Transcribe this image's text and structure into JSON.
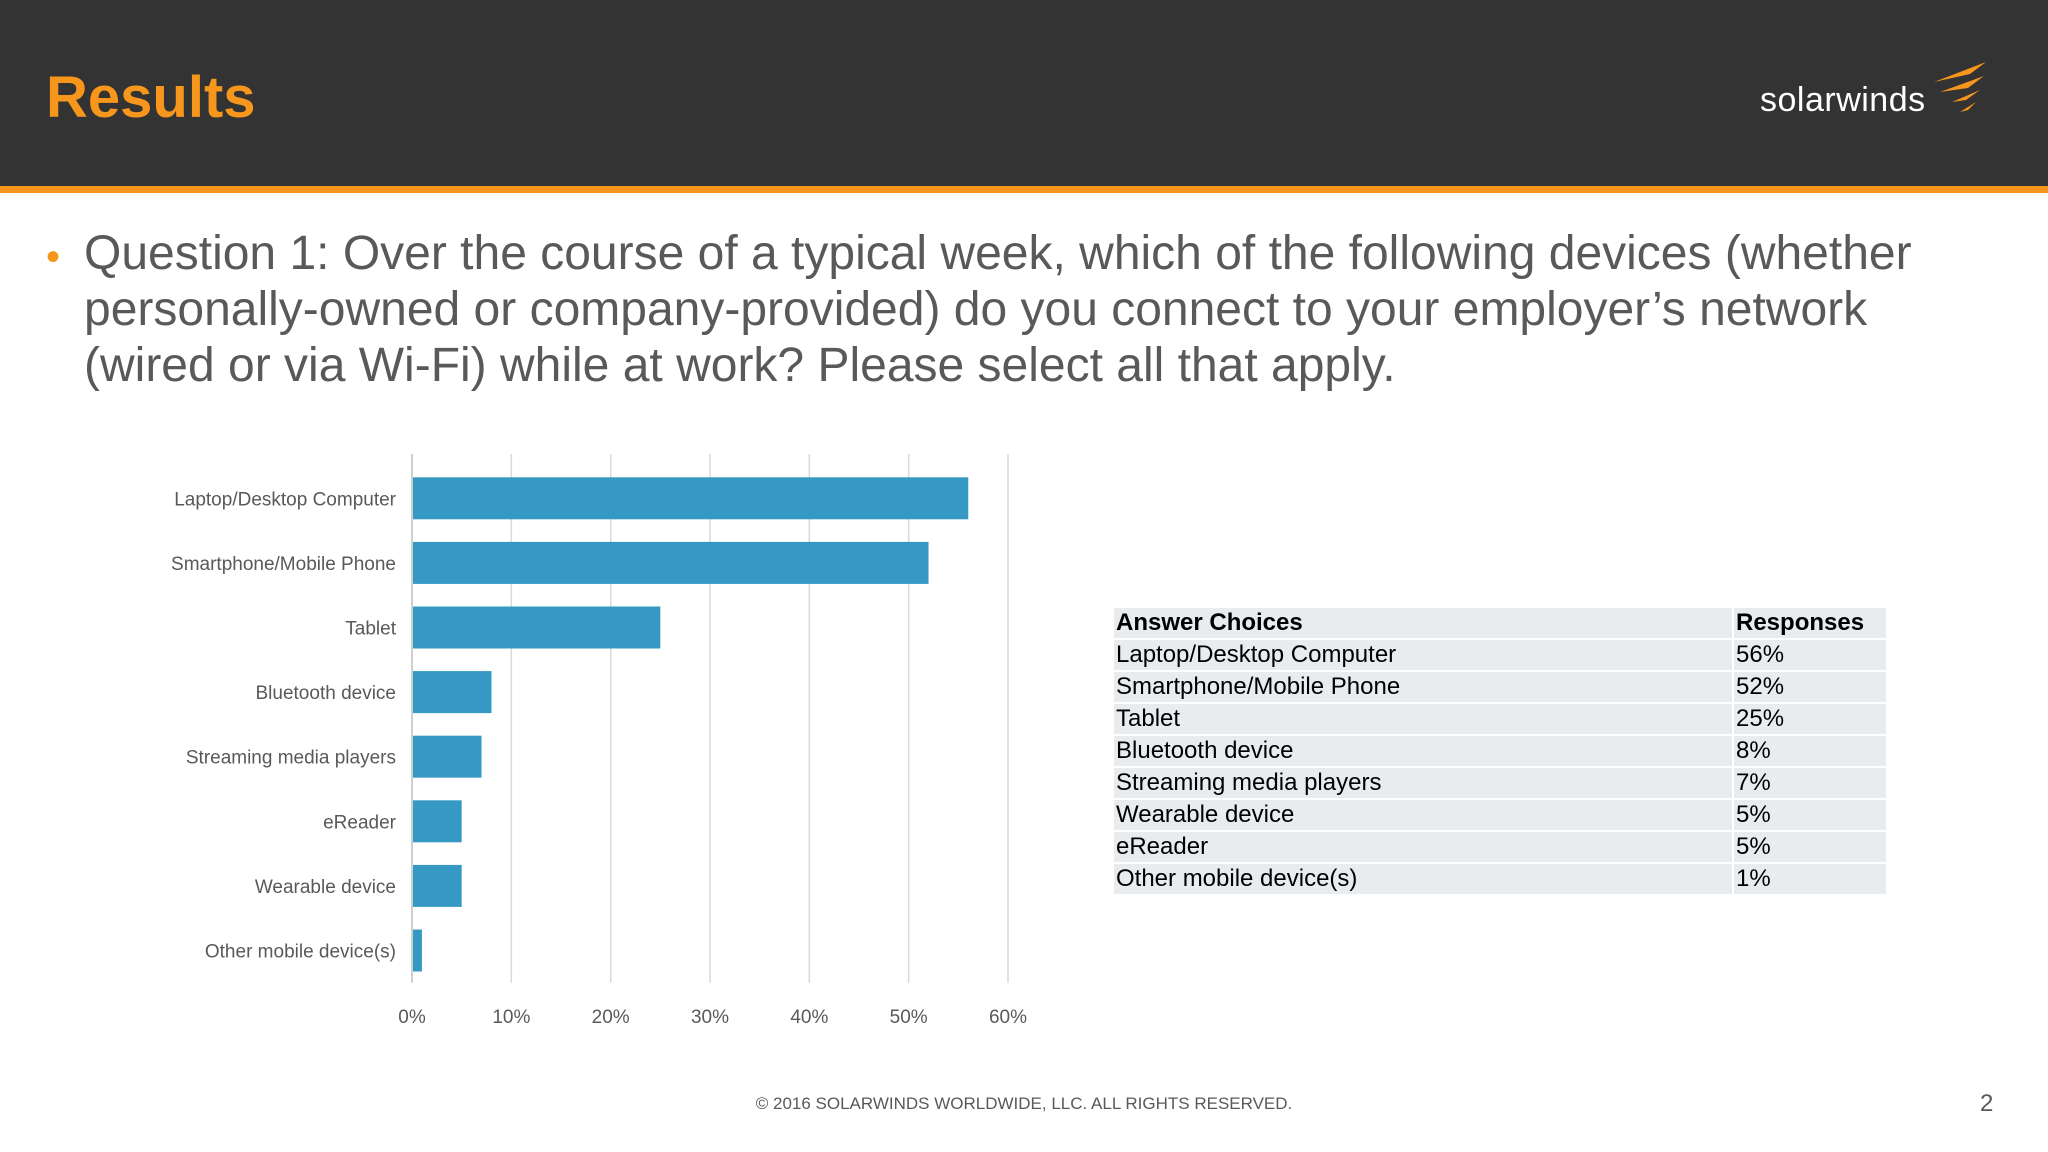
{
  "header": {
    "title": "Results",
    "logo_text": "solarwinds",
    "accent_color": "#f7961d",
    "background_color": "#333333"
  },
  "question": "Question 1: Over the course of a typical week, which of the following devices (whether personally-owned or company-provided) do you connect to your employer’s network (wired or via Wi-Fi) while at work? Please select all that apply.",
  "chart_data": {
    "type": "bar",
    "orientation": "horizontal",
    "categories": [
      "Laptop/Desktop Computer",
      "Smartphone/Mobile Phone",
      "Tablet",
      "Bluetooth device",
      "Streaming media players",
      "eReader",
      "Wearable device",
      "Other mobile device(s)"
    ],
    "values": [
      56,
      52,
      25,
      8,
      7,
      5,
      5,
      1
    ],
    "xlim": [
      0,
      60
    ],
    "xticks": [
      "0%",
      "10%",
      "20%",
      "30%",
      "40%",
      "50%",
      "60%"
    ],
    "bar_color": "#3599c4",
    "grid": true
  },
  "table": {
    "headers": [
      "Answer Choices",
      "Responses"
    ],
    "rows": [
      [
        "Laptop/Desktop Computer",
        "56%"
      ],
      [
        "Smartphone/Mobile Phone",
        "52%"
      ],
      [
        "Tablet",
        "25%"
      ],
      [
        "Bluetooth device",
        "8%"
      ],
      [
        "Streaming media players",
        "7%"
      ],
      [
        "Wearable device",
        "5%"
      ],
      [
        "eReader",
        "5%"
      ],
      [
        "Other mobile device(s)",
        "1%"
      ]
    ]
  },
  "footer": "© 2016 SOLARWINDS WORLDWIDE, LLC. ALL RIGHTS RESERVED.",
  "page_number": "2"
}
